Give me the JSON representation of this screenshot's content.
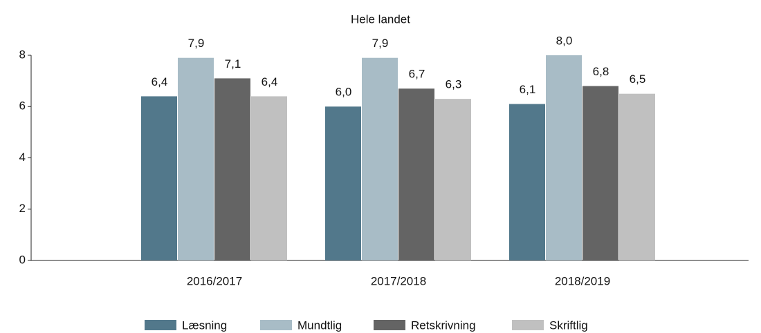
{
  "chart_data": {
    "type": "bar",
    "title": "Hele landet",
    "categories": [
      "2016/2017",
      "2017/2018",
      "2018/2019"
    ],
    "series": [
      {
        "name": "Læsning",
        "color": "#52788b",
        "values": [
          6.4,
          6.0,
          6.1
        ],
        "value_labels": [
          "6,4",
          "6,0",
          "6,1"
        ]
      },
      {
        "name": "Mundtlig",
        "color": "#a8bcc6",
        "values": [
          7.9,
          7.9,
          8.0
        ],
        "value_labels": [
          "7,9",
          "7,9",
          "8,0"
        ]
      },
      {
        "name": "Retskrivning",
        "color": "#646464",
        "values": [
          7.1,
          6.7,
          6.8
        ],
        "value_labels": [
          "7,1",
          "6,7",
          "6,8"
        ]
      },
      {
        "name": "Skriftlig",
        "color": "#c0c0c0",
        "values": [
          6.4,
          6.3,
          6.5
        ],
        "value_labels": [
          "6,4",
          "6,3",
          "6,5"
        ]
      }
    ],
    "ylim": [
      0,
      8
    ],
    "yticks": [
      0,
      2,
      4,
      6,
      8
    ]
  }
}
